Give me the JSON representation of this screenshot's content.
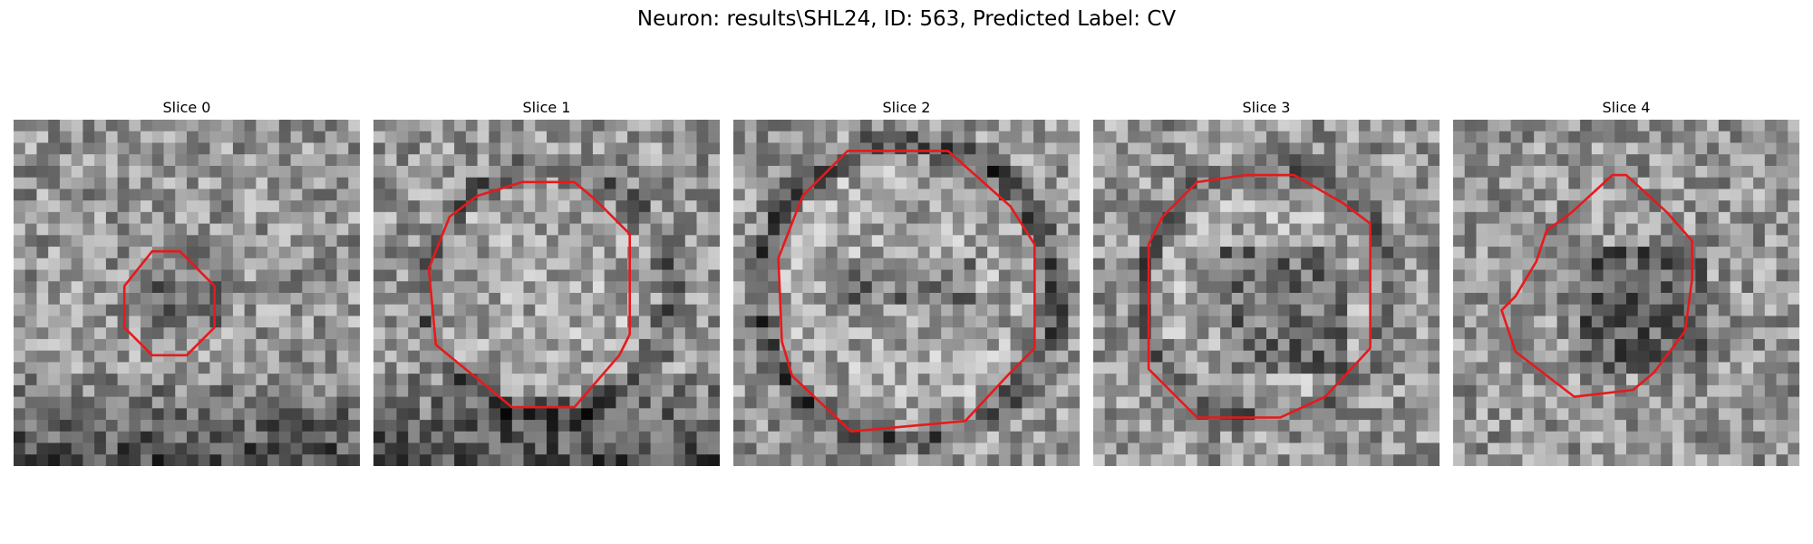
{
  "figure": {
    "title": "Neuron: results\\SHL24, ID: 563, Predicted Label: CV",
    "panels": [
      {
        "title": "Slice 0",
        "seed": 11,
        "ring": "none",
        "dark_bottom": true
      },
      {
        "title": "Slice 1",
        "seed": 23,
        "ring": "partial",
        "dark_bottom": true
      },
      {
        "title": "Slice 2",
        "seed": 37,
        "ring": "full",
        "dark_bottom": false
      },
      {
        "title": "Slice 3",
        "seed": 41,
        "ring": "faint",
        "dark_bottom": false
      },
      {
        "title": "Slice 4",
        "seed": 53,
        "ring": "blob",
        "dark_bottom": false
      }
    ],
    "contour_color": "#e8191b"
  }
}
